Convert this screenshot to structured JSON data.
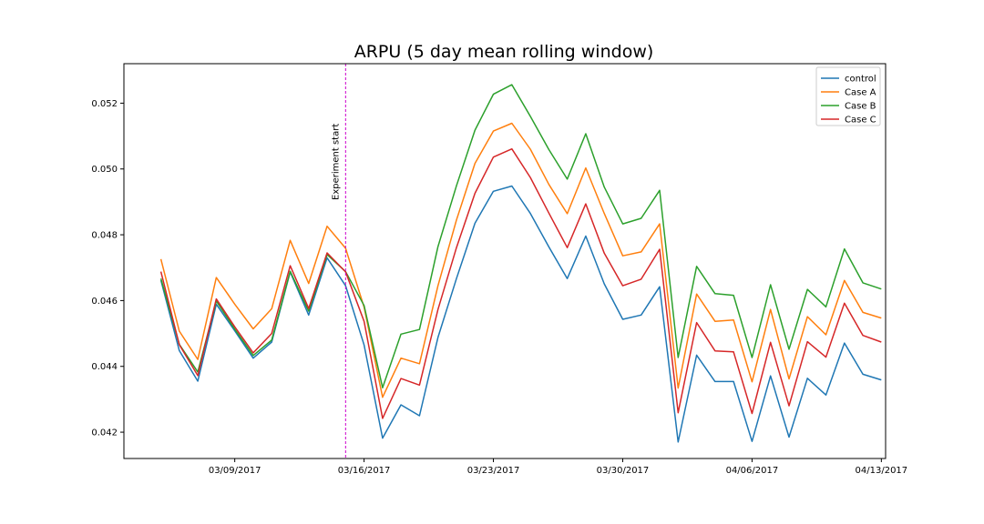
{
  "chart_data": {
    "type": "line",
    "title": "ARPU (5 day mean rolling window)",
    "xlabel": "",
    "ylabel": "",
    "x_dates": [
      "2017-03-05",
      "2017-03-06",
      "2017-03-07",
      "2017-03-08",
      "2017-03-09",
      "2017-03-10",
      "2017-03-11",
      "2017-03-12",
      "2017-03-13",
      "2017-03-14",
      "2017-03-15",
      "2017-03-16",
      "2017-03-17",
      "2017-03-18",
      "2017-03-19",
      "2017-03-20",
      "2017-03-21",
      "2017-03-22",
      "2017-03-23",
      "2017-03-24",
      "2017-03-25",
      "2017-03-26",
      "2017-03-27",
      "2017-03-28",
      "2017-03-29",
      "2017-03-30",
      "2017-03-31",
      "2017-04-01",
      "2017-04-02",
      "2017-04-03",
      "2017-04-04",
      "2017-04-05",
      "2017-04-06",
      "2017-04-07",
      "2017-04-08",
      "2017-04-09",
      "2017-04-10",
      "2017-04-11",
      "2017-04-12",
      "2017-04-13"
    ],
    "series": [
      {
        "name": "control",
        "color": "#1f77b4",
        "values": [
          0.04662,
          0.04448,
          0.04355,
          0.04589,
          0.04508,
          0.04425,
          0.04474,
          0.04687,
          0.04556,
          0.0473,
          0.04645,
          0.04465,
          0.04182,
          0.04283,
          0.0425,
          0.04488,
          0.04667,
          0.04835,
          0.04932,
          0.04948,
          0.04865,
          0.04763,
          0.04667,
          0.04796,
          0.04651,
          0.04543,
          0.04556,
          0.04642,
          0.0417,
          0.04434,
          0.04354,
          0.04354,
          0.04172,
          0.04371,
          0.04185,
          0.04364,
          0.04313,
          0.04471,
          0.04376,
          0.04359
        ]
      },
      {
        "name": "Case A",
        "color": "#ff7f0e",
        "values": [
          0.04726,
          0.04507,
          0.04421,
          0.0467,
          0.04589,
          0.04514,
          0.04575,
          0.04783,
          0.04652,
          0.04826,
          0.04759,
          0.0458,
          0.04306,
          0.04425,
          0.04408,
          0.04645,
          0.04845,
          0.05017,
          0.05115,
          0.05139,
          0.0506,
          0.04953,
          0.04864,
          0.05003,
          0.04865,
          0.04736,
          0.04748,
          0.04833,
          0.04334,
          0.0462,
          0.04537,
          0.04541,
          0.04353,
          0.04573,
          0.04362,
          0.04551,
          0.04496,
          0.04661,
          0.04564,
          0.04547
        ]
      },
      {
        "name": "Case B",
        "color": "#2ca02c",
        "values": [
          0.04667,
          0.04467,
          0.04383,
          0.04599,
          0.04513,
          0.04433,
          0.0448,
          0.04689,
          0.04568,
          0.0474,
          0.04688,
          0.04585,
          0.04335,
          0.04498,
          0.04512,
          0.04764,
          0.04949,
          0.05118,
          0.05227,
          0.05256,
          0.0516,
          0.05059,
          0.04969,
          0.05107,
          0.04945,
          0.04833,
          0.0485,
          0.04935,
          0.04427,
          0.04704,
          0.04621,
          0.04616,
          0.04427,
          0.04648,
          0.04452,
          0.04634,
          0.04581,
          0.04757,
          0.04654,
          0.04635
        ]
      },
      {
        "name": "Case C",
        "color": "#d62728",
        "values": [
          0.04688,
          0.04466,
          0.04372,
          0.04605,
          0.0452,
          0.04441,
          0.045,
          0.04706,
          0.04576,
          0.04745,
          0.04687,
          0.04537,
          0.04242,
          0.04363,
          0.04343,
          0.04573,
          0.04761,
          0.04926,
          0.05036,
          0.05061,
          0.04974,
          0.04866,
          0.04761,
          0.04894,
          0.04744,
          0.04645,
          0.04665,
          0.04756,
          0.04259,
          0.04533,
          0.04447,
          0.04444,
          0.04257,
          0.04473,
          0.0428,
          0.04475,
          0.04428,
          0.04592,
          0.04494,
          0.04474
        ]
      }
    ],
    "ylim": [
      0.0412,
      0.0532
    ],
    "xlim": [
      "2017-03-03",
      "2017-04-13"
    ],
    "y_ticks": [
      0.042,
      0.044,
      0.046,
      0.048,
      0.05,
      0.052
    ],
    "y_tick_labels": [
      "0.042",
      "0.044",
      "0.046",
      "0.048",
      "0.050",
      "0.052"
    ],
    "x_ticks": [
      "2017-03-09",
      "2017-03-16",
      "2017-03-23",
      "2017-03-30",
      "2017-04-06",
      "2017-04-13"
    ],
    "x_tick_labels": [
      "03/09/2017",
      "03/16/2017",
      "03/23/2017",
      "03/30/2017",
      "04/06/2017",
      "04/13/2017"
    ],
    "annotations": [
      {
        "type": "vline",
        "x": "2017-03-15",
        "color": "#cc00cc",
        "style": "dashed",
        "text": "Experiment start"
      }
    ],
    "legend": {
      "position": "top-right",
      "entries": [
        "control",
        "Case A",
        "Case B",
        "Case C"
      ]
    },
    "grid": false
  }
}
